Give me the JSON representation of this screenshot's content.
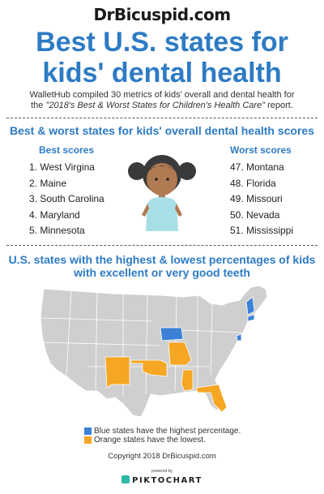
{
  "brand": "DrBicuspid.com",
  "title_line1": "Best U.S. states for",
  "title_line2": "kids' dental health",
  "intro": {
    "line1": "WalletHub compiled 30 metrics of kids' overall and dental health for",
    "line2_prefix": "the ",
    "line2_italic": "\"2018's Best & Worst States for Children's Health Care\"",
    "line2_suffix": " report."
  },
  "section1_title": "Best & worst states for kids' overall dental health scores",
  "best_heading": "Best scores",
  "worst_heading": "Worst scores",
  "best": [
    "1. West Virgina",
    "2. Maine",
    "3. South Carolina",
    "4. Maryland",
    "5. Minnesota"
  ],
  "worst": [
    "47. Montana",
    "48. Florida",
    "49. Missouri",
    "50. Nevada",
    "51. Mississippi"
  ],
  "section2_title_line1": "U.S. states with the highest & lowest percentages of kids",
  "section2_title_line2": "with excellent or very good teeth",
  "legend_blue": "Blue states have the highest percentage.",
  "legend_orange": "Orange states have the lowest.",
  "copyright": "Copyright 2018 DrBicuspid.com",
  "powered_by": "powered by",
  "piktochart": "PIKTOCHART",
  "colors": {
    "accent": "#2d7bc4",
    "blue_state": "#3b82d6",
    "orange_state": "#f5a623",
    "gray_state": "#cfcfcf"
  }
}
